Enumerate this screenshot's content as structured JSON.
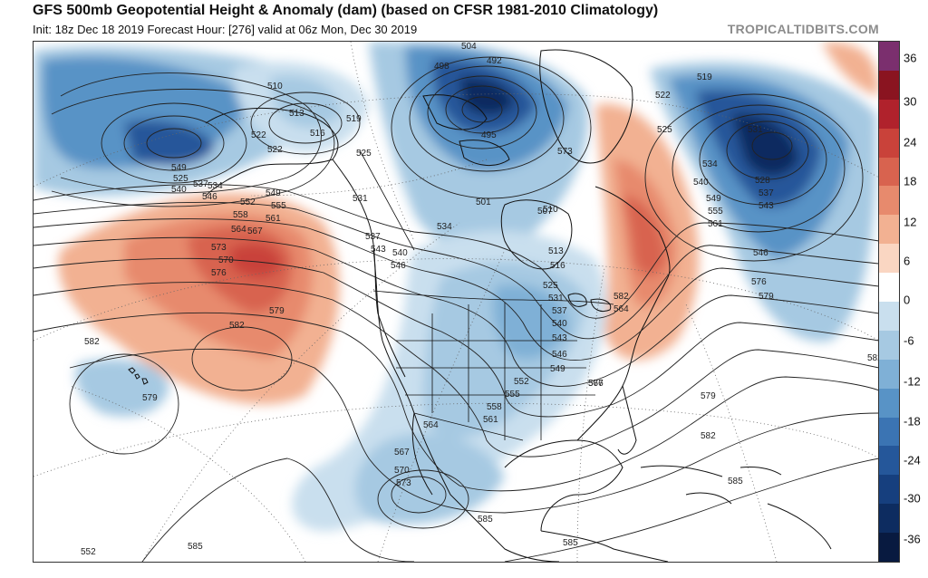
{
  "header": {
    "title": "GFS 500mb Geopotential Height & Anomaly (dam) (based on CFSR 1981-2010 Climatology)",
    "subtitle": "Init: 18z Dec 18 2019   Forecast Hour: [276]   valid at 06z Mon, Dec 30 2019",
    "brand": "TROPICALTIDBITS.COM"
  },
  "colorbar": {
    "labels": [
      "36",
      "30",
      "24",
      "18",
      "12",
      "6",
      "0",
      "-6",
      "-12",
      "-18",
      "-24",
      "-30",
      "-36"
    ],
    "colors": [
      "#7b2f6e",
      "#8a1420",
      "#b0222c",
      "#c9423a",
      "#d8634f",
      "#e78a6d",
      "#f2b192",
      "#fad6c2",
      "#ffffff",
      "#c9dfee",
      "#a6c9e2",
      "#7fb0d6",
      "#5893c6",
      "#3b74b3",
      "#25579a",
      "#163f7e",
      "#0d2c60",
      "#081a40"
    ]
  },
  "contour_labels": [
    {
      "t": "510"
    },
    {
      "t": "513"
    },
    {
      "t": "516"
    },
    {
      "t": "519"
    },
    {
      "t": "522"
    },
    {
      "t": "525"
    },
    {
      "t": "504"
    },
    {
      "t": "498"
    },
    {
      "t": "492"
    },
    {
      "t": "495"
    },
    {
      "t": "501"
    },
    {
      "t": "507"
    },
    {
      "t": "519"
    },
    {
      "t": "522"
    },
    {
      "t": "525"
    },
    {
      "t": "534"
    },
    {
      "t": "540"
    },
    {
      "t": "549"
    },
    {
      "t": "555"
    },
    {
      "t": "561"
    },
    {
      "t": "576"
    },
    {
      "t": "579"
    },
    {
      "t": "582"
    },
    {
      "t": "549"
    },
    {
      "t": "525"
    },
    {
      "t": "540"
    },
    {
      "t": "537"
    },
    {
      "t": "546"
    },
    {
      "t": "534"
    },
    {
      "t": "552"
    },
    {
      "t": "558"
    },
    {
      "t": "564"
    },
    {
      "t": "573"
    },
    {
      "t": "570"
    },
    {
      "t": "576"
    },
    {
      "t": "549"
    },
    {
      "t": "555"
    },
    {
      "t": "561"
    },
    {
      "t": "567"
    },
    {
      "t": "582"
    },
    {
      "t": "579"
    },
    {
      "t": "582"
    },
    {
      "t": "579"
    },
    {
      "t": "531"
    },
    {
      "t": "537"
    },
    {
      "t": "543"
    },
    {
      "t": "540"
    },
    {
      "t": "546"
    },
    {
      "t": "522"
    },
    {
      "t": "534"
    },
    {
      "t": "510"
    },
    {
      "t": "513"
    },
    {
      "t": "516"
    },
    {
      "t": "525"
    },
    {
      "t": "531"
    },
    {
      "t": "537"
    },
    {
      "t": "540"
    },
    {
      "t": "543"
    },
    {
      "t": "546"
    },
    {
      "t": "549"
    },
    {
      "t": "552"
    },
    {
      "t": "555"
    },
    {
      "t": "558"
    },
    {
      "t": "561"
    },
    {
      "t": "564"
    },
    {
      "t": "567"
    },
    {
      "t": "570"
    },
    {
      "t": "573"
    },
    {
      "t": "576"
    },
    {
      "t": "579"
    },
    {
      "t": "582"
    },
    {
      "t": "585"
    },
    {
      "t": "585"
    },
    {
      "t": "585"
    },
    {
      "t": "582"
    },
    {
      "t": "564"
    },
    {
      "t": "567"
    },
    {
      "t": "573"
    },
    {
      "t": "531"
    },
    {
      "t": "528"
    },
    {
      "t": "537"
    },
    {
      "t": "543"
    },
    {
      "t": "546"
    },
    {
      "t": "552"
    },
    {
      "t": "585"
    }
  ]
}
